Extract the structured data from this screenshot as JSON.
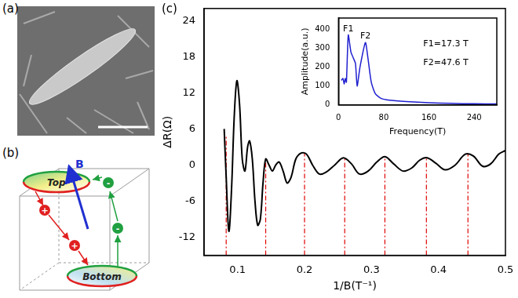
{
  "panels": {
    "a": {
      "label": "(a)"
    },
    "b": {
      "label": "(b)",
      "field": "B",
      "top": "Top",
      "bottom": "Bottom",
      "plus": "+",
      "minus": "-"
    },
    "c": {
      "label": "(c)"
    }
  },
  "chart_data": [
    {
      "type": "line",
      "x_label": "1/B(T⁻¹)",
      "y_label": "ΔR(Ω)",
      "xlim": [
        0.05,
        0.5
      ],
      "xticks": [
        0.1,
        0.2,
        0.3,
        0.4,
        0.5
      ],
      "ylim": [
        -15,
        26
      ],
      "yticks": [
        -12,
        -6,
        0,
        6,
        12,
        18,
        24
      ],
      "grid": false,
      "color": "#000000",
      "x": [
        0.08,
        0.083,
        0.087,
        0.091,
        0.095,
        0.099,
        0.103,
        0.107,
        0.111,
        0.115,
        0.118,
        0.122,
        0.126,
        0.13,
        0.134,
        0.138,
        0.142,
        0.147,
        0.152,
        0.157,
        0.162,
        0.168,
        0.174,
        0.18,
        0.187,
        0.195,
        0.203,
        0.212,
        0.222,
        0.232,
        0.245,
        0.258,
        0.27,
        0.282,
        0.295,
        0.308,
        0.32,
        0.333,
        0.347,
        0.36,
        0.372,
        0.383,
        0.396,
        0.41,
        0.425,
        0.44,
        0.452,
        0.466,
        0.478,
        0.49,
        0.5
      ],
      "values": [
        6,
        -2,
        -11,
        -4,
        8,
        14,
        10,
        1,
        -1,
        3,
        4,
        1,
        -6,
        -10,
        -9,
        -3,
        1,
        0,
        -1,
        0,
        0.5,
        -1,
        -3,
        -2,
        1,
        2,
        1.8,
        0,
        -1.5,
        -1.2,
        0,
        1.2,
        0.2,
        -1.5,
        -1,
        0.5,
        1.4,
        0.2,
        -1,
        -0.5,
        0.8,
        1.2,
        0.3,
        -0.8,
        0,
        1.8,
        1.5,
        -0.2,
        0.2,
        1.8,
        2.4
      ],
      "vlines": {
        "x": [
          0.083,
          0.142,
          0.2,
          0.26,
          0.32,
          0.382,
          0.444
        ],
        "y": [
          5,
          1,
          2,
          1.2,
          1.4,
          1.2,
          1.8
        ],
        "color": "#e00000",
        "line_style": "dashdot"
      }
    },
    {
      "type": "line",
      "x_label": "Frequency(T)",
      "y_label": "Amplitude(a.u.)",
      "xlim": [
        0,
        280
      ],
      "xticks": [
        0,
        80,
        160,
        240
      ],
      "ylim": [
        0,
        460
      ],
      "yticks": [
        0,
        100,
        200,
        300,
        400
      ],
      "grid": false,
      "color": "#2020d0",
      "x": [
        5,
        8,
        10,
        12,
        14,
        17.3,
        22,
        26,
        30,
        33,
        38,
        47.6,
        52,
        58,
        65,
        75,
        90,
        120,
        160,
        200,
        240,
        280
      ],
      "values": [
        130,
        140,
        110,
        140,
        120,
        370,
        280,
        250,
        220,
        100,
        200,
        330,
        250,
        120,
        60,
        35,
        25,
        18,
        12,
        8,
        6,
        5
      ],
      "annotations": [
        {
          "text": "F1",
          "x": 17.3,
          "y": 380
        },
        {
          "text": "F2",
          "x": 47.6,
          "y": 340
        },
        {
          "text": "F1=17.3 T",
          "x": 150,
          "y": 300
        },
        {
          "text": "F2=47.6 T",
          "x": 150,
          "y": 200
        }
      ]
    }
  ]
}
